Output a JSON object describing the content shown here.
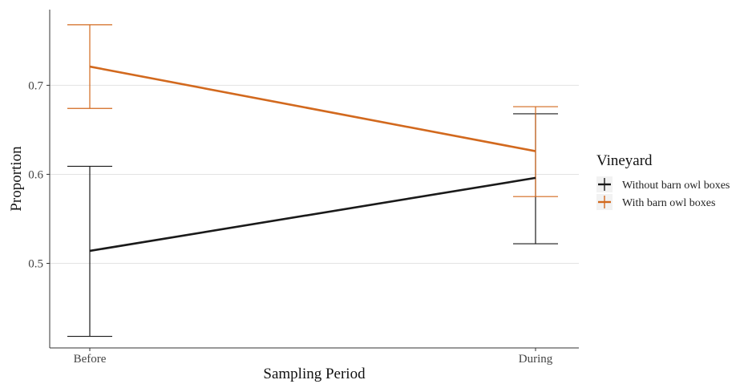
{
  "chart_data": {
    "type": "line",
    "title": "",
    "xlabel": "Sampling Period",
    "ylabel": "Proportion",
    "categories": [
      "Before",
      "During"
    ],
    "ylim": [
      0.405,
      0.785
    ],
    "yticks": [
      0.5,
      0.6,
      0.7
    ],
    "ytick_labels": [
      "0.5",
      "0.6",
      "0.7"
    ],
    "grid": "horizontal-major",
    "legend": {
      "title": "Vineyard",
      "placement": "right"
    },
    "series": [
      {
        "name": "Without barn owl boxes",
        "color": "#1a1a1a",
        "values": [
          0.514,
          0.596
        ],
        "lower": [
          0.418,
          0.522
        ],
        "upper": [
          0.609,
          0.668
        ]
      },
      {
        "name": "With barn owl boxes",
        "color": "#d2691e",
        "values": [
          0.721,
          0.626
        ],
        "lower": [
          0.674,
          0.575
        ],
        "upper": [
          0.768,
          0.676
        ]
      }
    ]
  }
}
